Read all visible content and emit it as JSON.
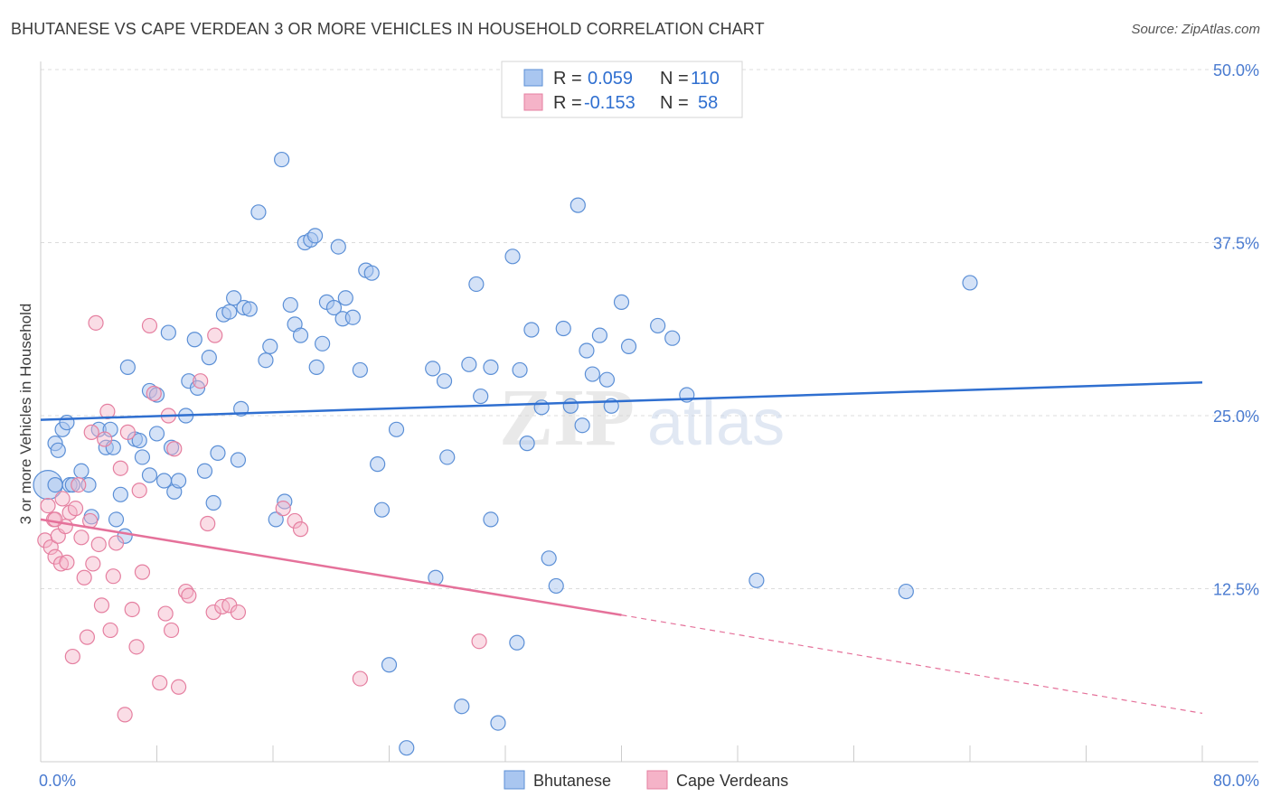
{
  "title": "BHUTANESE VS CAPE VERDEAN 3 OR MORE VEHICLES IN HOUSEHOLD CORRELATION CHART",
  "source": "Source: ZipAtlas.com",
  "watermark": {
    "zip": "ZIP",
    "atlas": "atlas"
  },
  "legend": {
    "rows": [
      {
        "r_label": "R =",
        "r_value": "0.059",
        "n_label": "N =",
        "n_value": "110",
        "color": "#a9c6f0"
      },
      {
        "r_label": "R =",
        "r_value": "-0.153",
        "n_label": "N =",
        "n_value": "58",
        "color": "#f5b3c8"
      }
    ]
  },
  "bottom_legend": [
    "Bhutanese",
    "Cape Verdeans"
  ],
  "chart_data": {
    "type": "scatter",
    "title": "BHUTANESE VS CAPE VERDEAN 3 OR MORE VEHICLES IN HOUSEHOLD CORRELATION CHART",
    "xlabel": "",
    "ylabel": "3 or more Vehicles in Household",
    "xlim": [
      0,
      80
    ],
    "ylim": [
      0,
      50
    ],
    "x_tick_labels": [
      "0.0%",
      "80.0%"
    ],
    "y_ticks": [
      12.5,
      25.0,
      37.5,
      50.0
    ],
    "y_tick_labels": [
      "12.5%",
      "25.0%",
      "37.5%",
      "50.0%"
    ],
    "grid": "dashed horizontal",
    "colors": {
      "bhutanese": "#5b8fd6",
      "bhutanese_fill": "#a9c6f0",
      "cape": "#e57fa0",
      "cape_fill": "#f5b3c8",
      "blue_line": "#2f6fd0",
      "pink_line": "#e5719a"
    },
    "series": [
      {
        "name": "Bhutanese",
        "trend": {
          "x0": 0,
          "y0": 24.7,
          "x1": 80,
          "y1": 27.4
        },
        "points": [
          [
            0.5,
            20.0
          ],
          [
            1.0,
            23.0
          ],
          [
            1.2,
            22.5
          ],
          [
            1.5,
            24.0
          ],
          [
            1.8,
            24.5
          ],
          [
            2.0,
            20.0
          ],
          [
            2.2,
            20.0
          ],
          [
            2.8,
            21.0
          ],
          [
            3.3,
            20.0
          ],
          [
            3.5,
            17.7
          ],
          [
            4.0,
            24.0
          ],
          [
            4.5,
            22.7
          ],
          [
            4.8,
            24.0
          ],
          [
            5.0,
            22.7
          ],
          [
            5.2,
            17.5
          ],
          [
            5.5,
            19.3
          ],
          [
            5.8,
            16.3
          ],
          [
            6.0,
            28.5
          ],
          [
            6.5,
            23.3
          ],
          [
            6.8,
            23.2
          ],
          [
            7.0,
            22.0
          ],
          [
            7.5,
            26.8
          ],
          [
            7.5,
            20.7
          ],
          [
            8.0,
            26.5
          ],
          [
            8.0,
            23.7
          ],
          [
            8.5,
            20.3
          ],
          [
            8.8,
            31.0
          ],
          [
            9.0,
            22.7
          ],
          [
            9.2,
            19.5
          ],
          [
            9.5,
            20.3
          ],
          [
            10.0,
            25.0
          ],
          [
            10.2,
            27.5
          ],
          [
            10.6,
            30.5
          ],
          [
            10.8,
            27.0
          ],
          [
            11.3,
            21.0
          ],
          [
            11.6,
            29.2
          ],
          [
            11.9,
            18.7
          ],
          [
            12.2,
            22.3
          ],
          [
            12.6,
            32.3
          ],
          [
            13.0,
            32.5
          ],
          [
            13.3,
            33.5
          ],
          [
            13.6,
            21.8
          ],
          [
            13.8,
            25.5
          ],
          [
            14.0,
            32.8
          ],
          [
            14.4,
            32.7
          ],
          [
            15.0,
            39.7
          ],
          [
            15.5,
            29.0
          ],
          [
            15.8,
            30.0
          ],
          [
            16.2,
            17.5
          ],
          [
            16.6,
            43.5
          ],
          [
            16.8,
            18.8
          ],
          [
            17.2,
            33.0
          ],
          [
            17.5,
            31.6
          ],
          [
            17.9,
            30.8
          ],
          [
            18.2,
            37.5
          ],
          [
            18.6,
            37.7
          ],
          [
            18.9,
            38.0
          ],
          [
            19.0,
            28.5
          ],
          [
            19.4,
            30.2
          ],
          [
            19.7,
            33.2
          ],
          [
            20.2,
            32.8
          ],
          [
            20.5,
            37.2
          ],
          [
            20.8,
            32.0
          ],
          [
            21.0,
            33.5
          ],
          [
            21.5,
            32.1
          ],
          [
            22.0,
            28.3
          ],
          [
            22.4,
            35.5
          ],
          [
            22.8,
            35.3
          ],
          [
            23.2,
            21.5
          ],
          [
            23.5,
            18.2
          ],
          [
            24.0,
            7.0
          ],
          [
            24.5,
            24.0
          ],
          [
            25.2,
            1.0
          ],
          [
            27.0,
            28.4
          ],
          [
            27.8,
            27.5
          ],
          [
            28.0,
            22.0
          ],
          [
            27.2,
            13.3
          ],
          [
            29.0,
            4.0
          ],
          [
            29.5,
            28.7
          ],
          [
            30.0,
            34.5
          ],
          [
            30.3,
            26.4
          ],
          [
            31.0,
            28.5
          ],
          [
            31.0,
            17.5
          ],
          [
            31.5,
            2.8
          ],
          [
            32.5,
            36.5
          ],
          [
            32.8,
            8.6
          ],
          [
            33.0,
            28.3
          ],
          [
            33.5,
            23.0
          ],
          [
            33.8,
            31.2
          ],
          [
            34.5,
            25.6
          ],
          [
            35.0,
            14.7
          ],
          [
            35.5,
            12.7
          ],
          [
            36.0,
            31.3
          ],
          [
            36.5,
            25.7
          ],
          [
            37.0,
            40.2
          ],
          [
            37.3,
            24.3
          ],
          [
            37.6,
            29.7
          ],
          [
            38.0,
            28.0
          ],
          [
            38.5,
            30.8
          ],
          [
            39.0,
            27.6
          ],
          [
            39.3,
            25.7
          ],
          [
            40.0,
            33.2
          ],
          [
            40.5,
            30.0
          ],
          [
            42.5,
            31.5
          ],
          [
            43.5,
            30.6
          ],
          [
            44.5,
            26.5
          ],
          [
            49.3,
            13.1
          ],
          [
            59.6,
            12.3
          ],
          [
            64.0,
            34.6
          ],
          [
            1.0,
            20.0
          ]
        ]
      },
      {
        "name": "Cape Verdeans",
        "trend": {
          "x0": 0,
          "y0": 17.5,
          "x1": 40,
          "y1": 10.6,
          "dash_x1": 80,
          "dash_y1": 3.5
        },
        "points": [
          [
            0.3,
            16.0
          ],
          [
            0.5,
            18.5
          ],
          [
            0.7,
            15.5
          ],
          [
            0.9,
            17.5
          ],
          [
            1.0,
            14.8
          ],
          [
            1.2,
            16.3
          ],
          [
            1.4,
            14.3
          ],
          [
            1.5,
            19.0
          ],
          [
            1.7,
            17.0
          ],
          [
            1.8,
            14.4
          ],
          [
            2.0,
            18.0
          ],
          [
            2.2,
            7.6
          ],
          [
            2.4,
            18.3
          ],
          [
            2.6,
            20.0
          ],
          [
            2.8,
            16.2
          ],
          [
            3.0,
            13.3
          ],
          [
            3.2,
            9.0
          ],
          [
            3.4,
            17.4
          ],
          [
            3.5,
            23.8
          ],
          [
            3.6,
            14.3
          ],
          [
            3.8,
            31.7
          ],
          [
            4.0,
            15.7
          ],
          [
            4.2,
            11.3
          ],
          [
            4.4,
            23.3
          ],
          [
            4.6,
            25.3
          ],
          [
            4.8,
            9.5
          ],
          [
            5.0,
            13.4
          ],
          [
            5.2,
            15.8
          ],
          [
            5.5,
            21.2
          ],
          [
            5.8,
            3.4
          ],
          [
            6.0,
            23.8
          ],
          [
            6.3,
            11.0
          ],
          [
            6.6,
            8.3
          ],
          [
            6.8,
            19.6
          ],
          [
            7.0,
            13.7
          ],
          [
            7.5,
            31.5
          ],
          [
            7.8,
            26.6
          ],
          [
            8.2,
            5.7
          ],
          [
            8.6,
            10.7
          ],
          [
            8.8,
            25.0
          ],
          [
            9.0,
            9.5
          ],
          [
            9.2,
            22.6
          ],
          [
            9.5,
            5.4
          ],
          [
            10.0,
            12.3
          ],
          [
            10.2,
            12.0
          ],
          [
            11.0,
            27.5
          ],
          [
            11.5,
            17.2
          ],
          [
            11.9,
            10.8
          ],
          [
            12.0,
            30.8
          ],
          [
            12.5,
            11.2
          ],
          [
            13.0,
            11.3
          ],
          [
            13.6,
            10.8
          ],
          [
            16.7,
            18.3
          ],
          [
            17.5,
            17.4
          ],
          [
            17.9,
            16.8
          ],
          [
            22.0,
            6.0
          ],
          [
            30.2,
            8.7
          ],
          [
            1.0,
            17.5
          ]
        ]
      }
    ]
  }
}
